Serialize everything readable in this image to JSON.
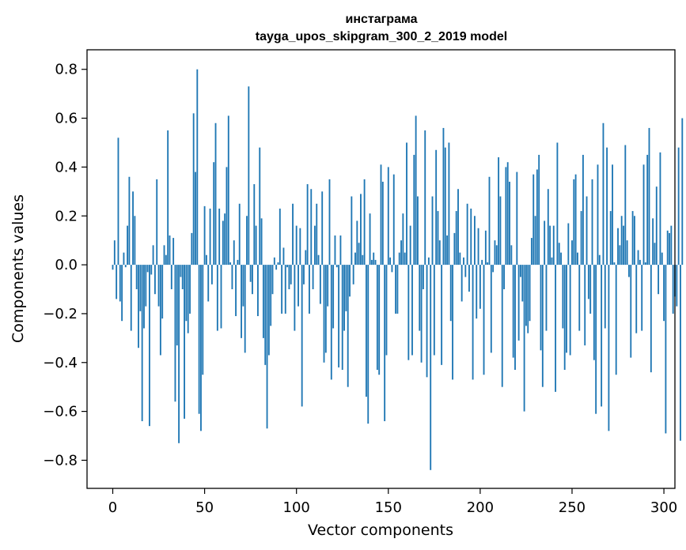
{
  "chart_data": {
    "type": "bar",
    "title": "инстаграма",
    "subtitle": "tayga_upos_skipgram_300_2_2019 model",
    "xlabel": "Vector components",
    "ylabel": "Components values",
    "xlim": [
      -14,
      306
    ],
    "ylim": [
      -0.915,
      0.88
    ],
    "xticks": [
      0,
      50,
      100,
      150,
      200,
      250,
      300
    ],
    "xtick_labels": [
      "0",
      "50",
      "100",
      "150",
      "200",
      "250",
      "300"
    ],
    "yticks": [
      0.8,
      0.6,
      0.4,
      0.2,
      0.0,
      -0.2,
      -0.4,
      -0.6,
      -0.8
    ],
    "ytick_labels": [
      "0.8",
      "0.6",
      "0.4",
      "0.2",
      "0.0",
      "−0.2",
      "−0.4",
      "−0.6",
      "−0.8"
    ],
    "bar_color": "#1f77b4",
    "grid": false,
    "values": [
      -0.02,
      0.1,
      -0.14,
      0.52,
      -0.15,
      -0.23,
      0.05,
      -0.01,
      0.16,
      0.36,
      -0.27,
      0.3,
      0.2,
      -0.1,
      -0.34,
      -0.19,
      -0.64,
      -0.26,
      -0.17,
      -0.03,
      -0.66,
      -0.04,
      0.08,
      -0.12,
      0.35,
      -0.17,
      -0.37,
      -0.22,
      0.08,
      0.04,
      0.55,
      0.12,
      -0.1,
      0.11,
      -0.56,
      -0.33,
      -0.73,
      -0.05,
      -0.1,
      -0.63,
      -0.23,
      -0.28,
      -0.2,
      0.13,
      0.62,
      0.38,
      0.8,
      -0.61,
      -0.68,
      -0.45,
      0.24,
      0.04,
      -0.15,
      0.23,
      -0.08,
      0.42,
      0.58,
      -0.27,
      0.23,
      -0.26,
      0.18,
      0.21,
      0.4,
      0.61,
      0.01,
      -0.1,
      0.1,
      -0.21,
      0.02,
      0.25,
      -0.3,
      -0.17,
      -0.36,
      0.2,
      0.73,
      -0.07,
      -0.12,
      0.33,
      0.16,
      -0.21,
      0.48,
      0.19,
      -0.3,
      -0.41,
      -0.67,
      -0.37,
      -0.25,
      -0.12,
      0.03,
      -0.02,
      0.01,
      0.23,
      -0.2,
      0.07,
      -0.2,
      -0.01,
      -0.1,
      -0.08,
      0.25,
      -0.27,
      0.16,
      -0.17,
      0.15,
      -0.58,
      -0.08,
      0.06,
      0.33,
      -0.2,
      0.31,
      -0.1,
      0.16,
      0.25,
      0.04,
      -0.16,
      0.3,
      -0.4,
      -0.36,
      -0.17,
      0.35,
      -0.47,
      -0.26,
      0.12,
      -0.01,
      -0.42,
      0.12,
      -0.43,
      -0.27,
      -0.19,
      -0.5,
      -0.13,
      0.28,
      -0.08,
      0.05,
      0.18,
      0.09,
      0.29,
      0.04,
      0.35,
      -0.54,
      -0.65,
      0.21,
      0.02,
      0.05,
      0.02,
      -0.43,
      -0.45,
      0.41,
      0.34,
      -0.64,
      -0.37,
      0.4,
      0.03,
      -0.03,
      0.37,
      -0.2,
      -0.2,
      0.05,
      0.1,
      0.21,
      0.05,
      0.5,
      -0.39,
      0.16,
      -0.37,
      0.45,
      0.61,
      0.28,
      -0.27,
      -0.4,
      -0.1,
      0.55,
      -0.46,
      0.03,
      -0.84,
      0.28,
      -0.37,
      0.47,
      0.22,
      0.1,
      -0.41,
      0.56,
      0.48,
      0.12,
      0.5,
      -0.23,
      -0.47,
      0.13,
      0.22,
      0.31,
      0.05,
      -0.15,
      0.03,
      -0.05,
      0.25,
      -0.11,
      0.23,
      -0.47,
      0.2,
      -0.22,
      0.15,
      -0.18,
      0.02,
      -0.45,
      0.14,
      0.01,
      0.36,
      -0.36,
      -0.03,
      0.1,
      0.08,
      0.44,
      0.28,
      -0.5,
      -0.1,
      0.4,
      0.42,
      0.34,
      0.08,
      -0.38,
      -0.43,
      0.38,
      -0.31,
      -0.05,
      -0.15,
      -0.6,
      -0.25,
      -0.28,
      -0.23,
      0.11,
      0.37,
      0.2,
      0.39,
      0.45,
      -0.35,
      -0.5,
      0.18,
      -0.27,
      0.31,
      0.16,
      0.03,
      0.16,
      -0.52,
      0.5,
      0.09,
      0.05,
      -0.26,
      -0.43,
      -0.36,
      0.17,
      -0.37,
      0.1,
      0.35,
      0.37,
      0.05,
      -0.27,
      0.22,
      0.45,
      -0.33,
      0.28,
      -0.14,
      -0.2,
      0.35,
      -0.39,
      -0.61,
      0.41,
      0.04,
      -0.58,
      0.58,
      -0.26,
      0.48,
      -0.68,
      0.22,
      0.41,
      0.01,
      -0.45,
      0.15,
      0.08,
      0.2,
      0.16,
      0.49,
      0.1,
      -0.05,
      -0.38,
      0.22,
      0.2,
      -0.28,
      0.06,
      0.02,
      -0.27,
      0.41,
      0.01,
      0.45,
      0.56,
      -0.44,
      0.19,
      0.09,
      0.32,
      -0.12,
      0.46,
      0.05,
      -0.23,
      -0.69,
      0.14,
      0.13,
      0.16,
      -0.2,
      -0.13,
      -0.17,
      0.48,
      -0.72,
      0.6
    ]
  }
}
